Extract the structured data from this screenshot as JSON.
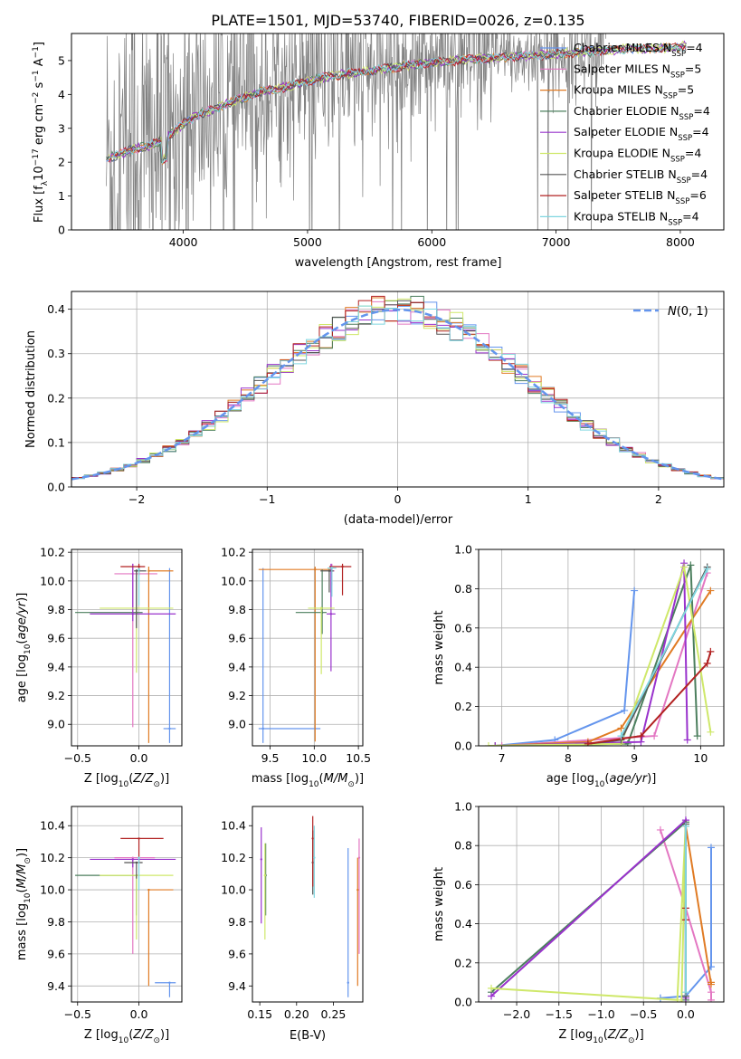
{
  "figure": {
    "title": "PLATE=1501, MJD=53740, FIBERID=0026, z=0.135"
  },
  "colors": {
    "Chabrier MILES": "#6495ed",
    "Salpeter MILES": "#e377c2",
    "Kroupa MILES": "#e07b24",
    "Chabrier ELODIE": "#4c7f5e",
    "Salpeter ELODIE": "#9932cc",
    "Kroupa ELODIE": "#cfe86a",
    "Chabrier STELIB": "#555555",
    "Salpeter STELIB": "#b22222",
    "Kroupa STELIB": "#7fd6e0",
    "spectrum": "#808080",
    "normal": "#6495ed"
  },
  "chart_data": [
    {
      "id": "spectrum",
      "type": "line",
      "xlabel": "wavelength [Angstrom, rest frame]",
      "ylabel": "Flux [f_λ 10^{-17} erg cm^{-2} s^{-1} A^{-1}]",
      "xlim": [
        3100,
        8350
      ],
      "ylim": [
        0,
        5.8
      ],
      "xticks": [
        4000,
        5000,
        6000,
        7000,
        8000
      ],
      "yticks": [
        0,
        1,
        2,
        3,
        4,
        5
      ],
      "grid": false,
      "legend_position": "top-right",
      "legend": [
        {
          "name": "Chabrier MILES",
          "nssp": "4"
        },
        {
          "name": "Salpeter MILES",
          "nssp": "5"
        },
        {
          "name": "Kroupa MILES",
          "nssp": "5"
        },
        {
          "name": "Chabrier ELODIE",
          "nssp": "4"
        },
        {
          "name": "Salpeter ELODIE",
          "nssp": "4"
        },
        {
          "name": "Kroupa ELODIE",
          "nssp": "4"
        },
        {
          "name": "Chabrier STELIB",
          "nssp": "4"
        },
        {
          "name": "Salpeter STELIB",
          "nssp": "6"
        },
        {
          "name": "Kroupa STELIB",
          "nssp": "4"
        }
      ],
      "model_continuum": {
        "x": [
          3380,
          3500,
          3600,
          3700,
          3800,
          3900,
          4000,
          4100,
          4200,
          4400,
          4600,
          4800,
          5000,
          5200,
          5400,
          5600,
          5800,
          6000,
          6200,
          6400,
          6600,
          6800,
          7000,
          7200,
          7400,
          7600,
          7800,
          8000,
          8050
        ],
        "y": [
          2.1,
          2.25,
          2.4,
          2.45,
          2.6,
          2.8,
          3.15,
          3.35,
          3.5,
          3.8,
          4.05,
          4.2,
          4.4,
          4.55,
          4.65,
          4.75,
          4.85,
          4.95,
          5.0,
          5.05,
          5.1,
          5.15,
          5.2,
          5.25,
          5.3,
          5.35,
          5.35,
          5.4,
          5.45
        ]
      },
      "observed_noise_range": [
        3380,
        7400
      ]
    },
    {
      "id": "residuals",
      "type": "line",
      "xlabel": "(data-model)/error",
      "ylabel": "Normed distribution",
      "xlim": [
        -2.5,
        2.5
      ],
      "ylim": [
        0,
        0.44
      ],
      "xticks": [
        -2,
        -1,
        0,
        1,
        2
      ],
      "yticks": [
        0.0,
        0.1,
        0.2,
        0.3,
        0.4
      ],
      "grid": true,
      "legend_position": "top-right",
      "legend_label": "N(0, 1)"
    },
    {
      "id": "age_vs_Z",
      "type": "scatter",
      "xlabel": "Z [log10(Z/Z⊙)]",
      "ylabel": "age [log10(age/yr)]",
      "xlim": [
        -0.55,
        0.35
      ],
      "ylim": [
        8.85,
        10.22
      ],
      "xticks": [
        -0.5,
        0.0
      ],
      "yticks": [
        9.0,
        9.2,
        9.4,
        9.6,
        9.8,
        10.0,
        10.2
      ],
      "grid": true,
      "points": [
        {
          "model": "Chabrier MILES",
          "x": 0.25,
          "y": 8.97,
          "xerr": [
            0.05,
            0.05
          ],
          "yerr": [
            0.1,
            1.12
          ]
        },
        {
          "model": "Salpeter MILES",
          "x": -0.05,
          "y": 10.05,
          "xerr": [
            0.15,
            0.2
          ],
          "yerr": [
            1.07,
            0.07
          ]
        },
        {
          "model": "Kroupa MILES",
          "x": 0.08,
          "y": 10.07,
          "xerr": [
            0.0,
            0.2
          ],
          "yerr": [
            1.2,
            0.03
          ]
        },
        {
          "model": "Chabrier ELODIE",
          "x": -0.02,
          "y": 9.78,
          "xerr": [
            0.5,
            0.05
          ],
          "yerr": [
            0.1,
            0.3
          ]
        },
        {
          "model": "Salpeter ELODIE",
          "x": -0.05,
          "y": 9.77,
          "xerr": [
            0.35,
            0.35
          ],
          "yerr": [
            0.05,
            0.35
          ]
        },
        {
          "model": "Kroupa ELODIE",
          "x": -0.02,
          "y": 9.81,
          "xerr": [
            0.3,
            0.3
          ],
          "yerr": [
            0.45,
            0.01
          ]
        },
        {
          "model": "Chabrier STELIB",
          "x": -0.02,
          "y": 10.07,
          "xerr": [
            0.02,
            0.08
          ],
          "yerr": [
            0.4,
            0.01
          ]
        },
        {
          "model": "Salpeter STELIB",
          "x": 0.0,
          "y": 10.1,
          "xerr": [
            0.15,
            0.05
          ],
          "yerr": [
            0.06,
            0.02
          ]
        },
        {
          "model": "Kroupa STELIB",
          "x": 0.0,
          "y": 10.08,
          "xerr": [
            0.01,
            0.01
          ],
          "yerr": [
            0.25,
            0.01
          ]
        }
      ]
    },
    {
      "id": "age_vs_mass",
      "type": "scatter",
      "xlabel": "mass [log10(M/M⊙)]",
      "ylabel": "",
      "xlim": [
        9.3,
        10.55
      ],
      "ylim": [
        8.85,
        10.22
      ],
      "xticks": [
        9.5,
        10.0,
        10.5
      ],
      "yticks": [
        9.0,
        9.2,
        9.4,
        9.6,
        9.8,
        10.0,
        10.2
      ],
      "grid": true,
      "points": [
        {
          "model": "Chabrier MILES",
          "x": 9.42,
          "y": 8.97,
          "xerr": [
            0.05,
            0.65
          ],
          "yerr": [
            0.1,
            1.12
          ]
        },
        {
          "model": "Salpeter MILES",
          "x": 10.2,
          "y": 10.07,
          "xerr": [
            0.02,
            0.03
          ],
          "yerr": [
            0.1,
            0.05
          ]
        },
        {
          "model": "Kroupa MILES",
          "x": 10.01,
          "y": 10.08,
          "xerr": [
            0.64,
            0.19
          ],
          "yerr": [
            1.2,
            0.02
          ]
        },
        {
          "model": "Chabrier ELODIE",
          "x": 10.09,
          "y": 9.78,
          "xerr": [
            0.3,
            0.05
          ],
          "yerr": [
            0.15,
            0.3
          ]
        },
        {
          "model": "Salpeter ELODIE",
          "x": 10.19,
          "y": 9.77,
          "xerr": [
            0.05,
            0.05
          ],
          "yerr": [
            0.4,
            0.35
          ]
        },
        {
          "model": "Kroupa ELODIE",
          "x": 10.08,
          "y": 9.81,
          "xerr": [
            0.15,
            0.15
          ],
          "yerr": [
            0.46,
            0.01
          ]
        },
        {
          "model": "Chabrier STELIB",
          "x": 10.17,
          "y": 10.07,
          "xerr": [
            0.1,
            0.05
          ],
          "yerr": [
            0.15,
            0.01
          ]
        },
        {
          "model": "Salpeter STELIB",
          "x": 10.32,
          "y": 10.1,
          "xerr": [
            0.15,
            0.1
          ],
          "yerr": [
            0.2,
            0.02
          ]
        },
        {
          "model": "Kroupa STELIB",
          "x": 10.2,
          "y": 10.09,
          "xerr": [
            0.05,
            0.05
          ],
          "yerr": [
            0.2,
            0.01
          ]
        }
      ]
    },
    {
      "id": "weight_vs_age",
      "type": "line",
      "xlabel": "age [log10(age/yr)]",
      "ylabel": "mass weight",
      "xlim": [
        6.65,
        10.35
      ],
      "ylim": [
        0,
        1.0
      ],
      "xticks": [
        7,
        8,
        9,
        10
      ],
      "yticks": [
        0.0,
        0.2,
        0.4,
        0.6,
        0.8,
        1.0
      ],
      "grid": true,
      "series": [
        {
          "model": "Chabrier MILES",
          "x": [
            6.9,
            7.8,
            8.85,
            9.0
          ],
          "y": [
            0.0,
            0.03,
            0.18,
            0.79
          ]
        },
        {
          "model": "Salpeter MILES",
          "x": [
            7.0,
            8.8,
            9.3,
            10.1
          ],
          "y": [
            0.0,
            0.04,
            0.05,
            0.88
          ]
        },
        {
          "model": "Kroupa MILES",
          "x": [
            6.9,
            8.3,
            8.8,
            10.15
          ],
          "y": [
            0.0,
            0.02,
            0.09,
            0.79
          ]
        },
        {
          "model": "Chabrier ELODIE",
          "x": [
            6.9,
            8.9,
            9.85,
            9.95
          ],
          "y": [
            0.0,
            0.01,
            0.92,
            0.05
          ]
        },
        {
          "model": "Salpeter ELODIE",
          "x": [
            6.9,
            9.1,
            9.75,
            9.8
          ],
          "y": [
            0.0,
            0.02,
            0.93,
            0.03
          ]
        },
        {
          "model": "Kroupa ELODIE",
          "x": [
            6.8,
            8.8,
            9.75,
            10.15
          ],
          "y": [
            0.0,
            0.01,
            0.91,
            0.07
          ]
        },
        {
          "model": "Chabrier STELIB",
          "x": [
            8.3,
            8.8,
            10.1
          ],
          "y": [
            0.01,
            0.03,
            0.91
          ]
        },
        {
          "model": "Salpeter STELIB",
          "x": [
            8.3,
            9.1,
            10.1,
            10.15
          ],
          "y": [
            0.01,
            0.05,
            0.42,
            0.48
          ]
        },
        {
          "model": "Kroupa STELIB",
          "x": [
            8.8,
            10.1
          ],
          "y": [
            0.05,
            0.9
          ]
        }
      ]
    },
    {
      "id": "mass_vs_Z",
      "type": "scatter",
      "xlabel": "Z [log10(Z/Z⊙)]",
      "ylabel": "mass [log10(M/M⊙)]",
      "xlim": [
        -0.55,
        0.35
      ],
      "ylim": [
        9.3,
        10.52
      ],
      "xticks": [
        -0.5,
        0.0
      ],
      "yticks": [
        9.4,
        9.6,
        9.8,
        10.0,
        10.2,
        10.4
      ],
      "grid": true,
      "points": [
        {
          "model": "Chabrier MILES",
          "x": 0.25,
          "y": 9.42,
          "xerr": [
            0.12,
            0.05
          ],
          "yerr": [
            0.09,
            0.0
          ]
        },
        {
          "model": "Salpeter MILES",
          "x": -0.05,
          "y": 10.2,
          "xerr": [
            0.15,
            0.18
          ],
          "yerr": [
            0.6,
            0.0
          ]
        },
        {
          "model": "Kroupa MILES",
          "x": 0.08,
          "y": 10.0,
          "xerr": [
            0.0,
            0.2
          ],
          "yerr": [
            0.6,
            0.0
          ]
        },
        {
          "model": "Chabrier ELODIE",
          "x": -0.02,
          "y": 10.09,
          "xerr": [
            0.5,
            0.0
          ],
          "yerr": [
            0.25,
            0.0
          ]
        },
        {
          "model": "Salpeter ELODIE",
          "x": -0.05,
          "y": 10.19,
          "xerr": [
            0.35,
            0.35
          ],
          "yerr": [
            0.05,
            0.0
          ]
        },
        {
          "model": "Kroupa ELODIE",
          "x": -0.02,
          "y": 10.09,
          "xerr": [
            0.3,
            0.3
          ],
          "yerr": [
            0.4,
            0.0
          ]
        },
        {
          "model": "Chabrier STELIB",
          "x": -0.02,
          "y": 10.17,
          "xerr": [
            0.1,
            0.05
          ],
          "yerr": [
            0.1,
            0.0
          ]
        },
        {
          "model": "Salpeter STELIB",
          "x": 0.0,
          "y": 10.32,
          "xerr": [
            0.15,
            0.2
          ],
          "yerr": [
            0.15,
            0.0
          ]
        },
        {
          "model": "Kroupa STELIB",
          "x": 0.0,
          "y": 10.2,
          "xerr": [
            0.01,
            0.01
          ],
          "yerr": [
            0.2,
            0.0
          ]
        }
      ]
    },
    {
      "id": "mass_vs_EBV",
      "type": "scatter",
      "xlabel": "E(B-V)",
      "ylabel": "",
      "xlim": [
        0.14,
        0.29
      ],
      "ylim": [
        9.3,
        10.52
      ],
      "xticks": [
        0.15,
        0.2,
        0.25
      ],
      "yticks": [
        9.4,
        9.6,
        9.8,
        10.0,
        10.2,
        10.4
      ],
      "grid": false,
      "points": [
        {
          "model": "Chabrier MILES",
          "x": 0.27,
          "y": 9.42,
          "yerr": [
            0.09,
            0.84
          ]
        },
        {
          "model": "Salpeter MILES",
          "x": 0.285,
          "y": 10.2,
          "yerr": [
            0.6,
            0.12
          ]
        },
        {
          "model": "Kroupa MILES",
          "x": 0.283,
          "y": 10.0,
          "yerr": [
            0.6,
            0.2
          ]
        },
        {
          "model": "Chabrier ELODIE",
          "x": 0.158,
          "y": 10.09,
          "yerr": [
            0.25,
            0.2
          ]
        },
        {
          "model": "Salpeter ELODIE",
          "x": 0.152,
          "y": 10.19,
          "yerr": [
            0.4,
            0.2
          ]
        },
        {
          "model": "Kroupa ELODIE",
          "x": 0.157,
          "y": 10.09,
          "yerr": [
            0.4,
            0.2
          ]
        },
        {
          "model": "Chabrier STELIB",
          "x": 0.222,
          "y": 10.17,
          "yerr": [
            0.2,
            0.2
          ]
        },
        {
          "model": "Salpeter STELIB",
          "x": 0.222,
          "y": 10.32,
          "yerr": [
            0.3,
            0.14
          ]
        },
        {
          "model": "Kroupa STELIB",
          "x": 0.224,
          "y": 10.2,
          "yerr": [
            0.25,
            0.2
          ]
        }
      ]
    },
    {
      "id": "weight_vs_Z",
      "type": "line",
      "xlabel": "Z [log10(Z/Z⊙)]",
      "ylabel": "mass weight",
      "xlim": [
        -2.45,
        0.45
      ],
      "ylim": [
        0,
        1.0
      ],
      "xticks": [
        -2.0,
        -1.5,
        -1.0,
        -0.5,
        0.0
      ],
      "yticks": [
        0.0,
        0.2,
        0.4,
        0.6,
        0.8,
        1.0
      ],
      "grid": true,
      "series": [
        {
          "model": "Chabrier MILES",
          "x": [
            -0.3,
            0.0,
            0.3,
            0.3
          ],
          "y": [
            0.02,
            0.03,
            0.18,
            0.79
          ]
        },
        {
          "model": "Salpeter MILES",
          "x": [
            -0.3,
            0.0,
            0.3,
            0.3
          ],
          "y": [
            0.88,
            0.48,
            0.05,
            0.01
          ]
        },
        {
          "model": "Kroupa MILES",
          "x": [
            0.0,
            0.3,
            0.3
          ],
          "y": [
            0.9,
            0.09,
            0.1
          ]
        },
        {
          "model": "Chabrier ELODIE",
          "x": [
            -2.3,
            0.0,
            0.0
          ],
          "y": [
            0.05,
            0.92,
            0.01
          ]
        },
        {
          "model": "Salpeter ELODIE",
          "x": [
            -2.3,
            0.0,
            0.0
          ],
          "y": [
            0.03,
            0.93,
            0.02
          ]
        },
        {
          "model": "Kroupa ELODIE",
          "x": [
            -2.3,
            -0.1,
            0.0,
            -0.05
          ],
          "y": [
            0.07,
            0.01,
            0.91,
            0.0
          ]
        },
        {
          "model": "Chabrier STELIB",
          "x": [
            0.0,
            0.0
          ],
          "y": [
            0.03,
            0.91
          ]
        },
        {
          "model": "Salpeter STELIB",
          "x": [
            0.0,
            0.0
          ],
          "y": [
            0.48,
            0.42
          ]
        },
        {
          "model": "Kroupa STELIB",
          "x": [
            0.0,
            0.0
          ],
          "y": [
            0.05,
            0.9
          ]
        }
      ]
    }
  ]
}
